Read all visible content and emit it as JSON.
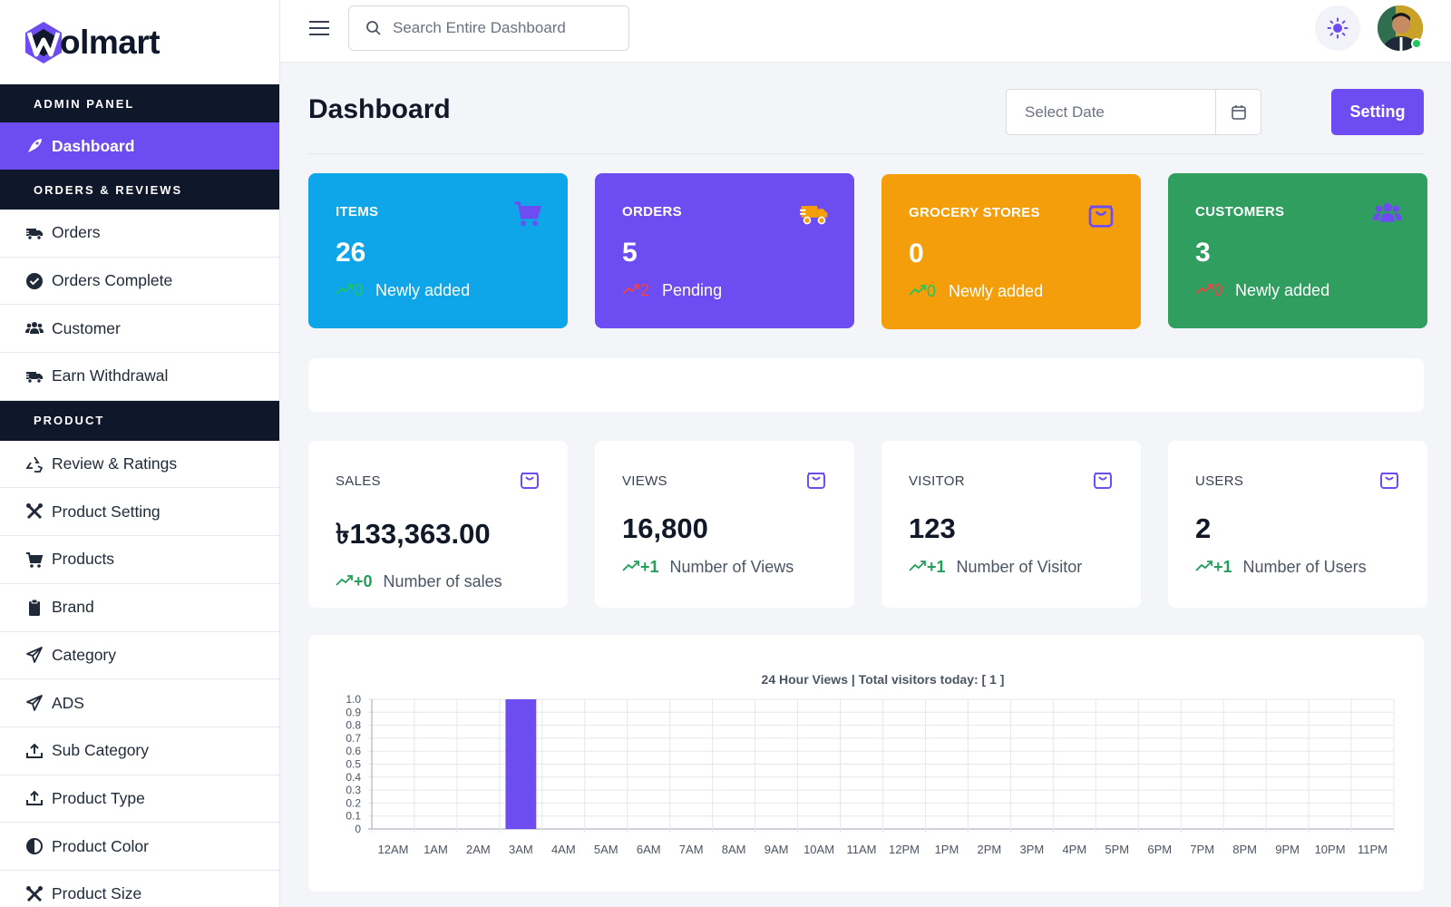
{
  "brand": {
    "logo_text": "olmart",
    "logo_letter": "W",
    "accent": "#6d4df2"
  },
  "header": {
    "search_placeholder": "Search Entire Dashboard"
  },
  "sidebar": {
    "sections": [
      {
        "title": "ADMIN PANEL",
        "items": [
          {
            "label": "Dashboard",
            "icon": "rocket-icon",
            "active": true
          }
        ]
      },
      {
        "title": "ORDERS & REVIEWS",
        "items": [
          {
            "label": "Orders",
            "icon": "truck-icon"
          },
          {
            "label": "Orders Complete",
            "icon": "check-circle-icon"
          },
          {
            "label": "Customer",
            "icon": "users-icon"
          },
          {
            "label": "Earn Withdrawal",
            "icon": "truck-icon"
          }
        ]
      },
      {
        "title": "PRODUCT",
        "items": [
          {
            "label": "Review & Ratings",
            "icon": "recycle-icon"
          },
          {
            "label": "Product Setting",
            "icon": "tools-icon"
          },
          {
            "label": "Products",
            "icon": "cart-icon"
          },
          {
            "label": "Brand",
            "icon": "clipboard-icon"
          },
          {
            "label": "Category",
            "icon": "paper-plane-icon"
          },
          {
            "label": "ADS",
            "icon": "paper-plane-icon"
          },
          {
            "label": "Sub Category",
            "icon": "upload-icon"
          },
          {
            "label": "Product Type",
            "icon": "upload-icon"
          },
          {
            "label": "Product Color",
            "icon": "contrast-icon"
          },
          {
            "label": "Product Size",
            "icon": "tools-icon"
          }
        ]
      }
    ]
  },
  "main": {
    "title": "Dashboard",
    "date_placeholder": "Select Date",
    "setting_label": "Setting",
    "cards": [
      {
        "label": "ITEMS",
        "value": "26",
        "delta": "0",
        "note": "Newly added",
        "color": "#0ea5e9",
        "icon": "cart-icon"
      },
      {
        "label": "ORDERS",
        "value": "5",
        "delta": "2",
        "note": "Pending",
        "color": "#6d4df2",
        "icon": "truck-icon"
      },
      {
        "label": "GROCERY STORES",
        "value": "0",
        "delta": "0",
        "note": "Newly added",
        "color": "#f59e0b",
        "icon": "bag-icon"
      },
      {
        "label": "CUSTOMERS",
        "value": "3",
        "delta": "0",
        "note": "Newly added",
        "color": "#2f9e5f",
        "icon": "users-icon"
      }
    ],
    "stats": [
      {
        "label": "SALES",
        "value": "৳133,363.00",
        "delta": "+0",
        "note": "Number of sales"
      },
      {
        "label": "VIEWS",
        "value": "16,800",
        "delta": "+1",
        "note": "Number of Views"
      },
      {
        "label": "VISITOR",
        "value": "123",
        "delta": "+1",
        "note": "Number of Visitor"
      },
      {
        "label": "USERS",
        "value": "2",
        "delta": "+1",
        "note": "Number of Users"
      }
    ]
  },
  "chart_data": {
    "type": "bar",
    "title": "24 Hour Views | Total visitors today: [ 1 ]",
    "categories": [
      "12AM",
      "1AM",
      "2AM",
      "3AM",
      "4AM",
      "5AM",
      "6AM",
      "7AM",
      "8AM",
      "9AM",
      "10AM",
      "11AM",
      "12PM",
      "1PM",
      "2PM",
      "3PM",
      "4PM",
      "5PM",
      "6PM",
      "7PM",
      "8PM",
      "9PM",
      "10PM",
      "11PM"
    ],
    "values": [
      0,
      0,
      0,
      1,
      0,
      0,
      0,
      0,
      0,
      0,
      0,
      0,
      0,
      0,
      0,
      0,
      0,
      0,
      0,
      0,
      0,
      0,
      0,
      0
    ],
    "ylim": [
      0,
      1
    ],
    "yticks": [
      "0",
      "0.1",
      "0.2",
      "0.3",
      "0.4",
      "0.5",
      "0.6",
      "0.7",
      "0.8",
      "0.9",
      "1.0"
    ],
    "bar_color": "#6d4df2",
    "grid": true
  }
}
